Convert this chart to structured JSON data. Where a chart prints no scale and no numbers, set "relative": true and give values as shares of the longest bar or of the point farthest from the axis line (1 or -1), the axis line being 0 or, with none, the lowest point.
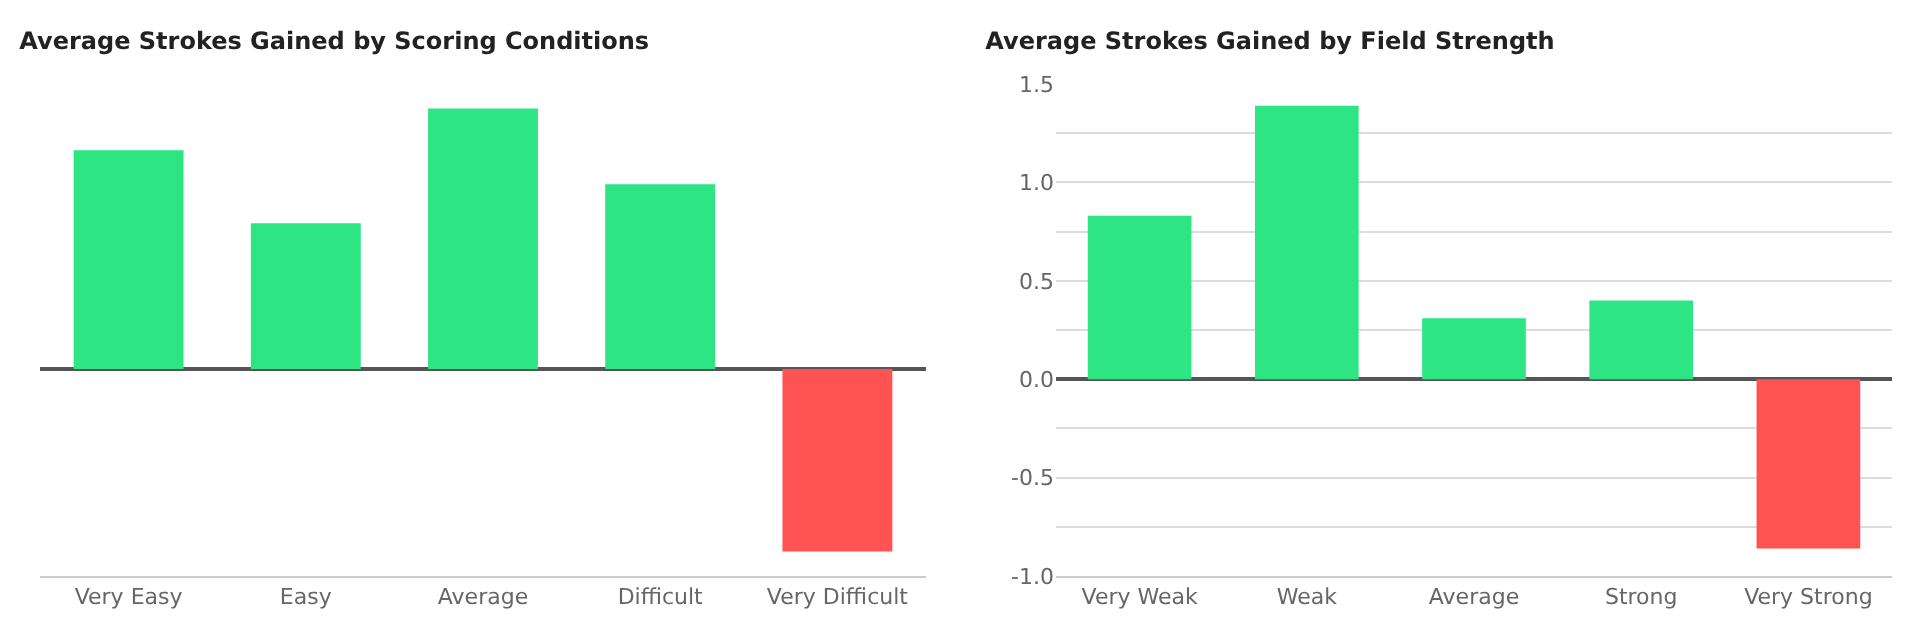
{
  "chart_data": [
    {
      "type": "bar",
      "title": "Average Strokes Gained by Scoring Conditions",
      "categories": [
        "Very Easy",
        "Easy",
        "Average",
        "Difficult",
        "Very Difficult"
      ],
      "values": [
        0.84,
        0.56,
        1,
        0.71,
        -0.7
      ],
      "colors": [
        "#2ee584",
        "#2ee584",
        "#2ee584",
        "#2ee584",
        "#ff5252"
      ],
      "relative": true
    },
    {
      "type": "bar",
      "title": "Average Strokes Gained by Field Strength",
      "categories": [
        "Very Weak",
        "Weak",
        "Average",
        "Strong",
        "Very Strong"
      ],
      "values": [
        0.83,
        1.39,
        0.31,
        0.4,
        -0.86
      ],
      "colors": [
        "#2ee584",
        "#2ee584",
        "#2ee584",
        "#2ee584",
        "#ff5252"
      ],
      "ylim": [
        -1,
        1.5
      ],
      "yticks": [
        {
          "value": -1,
          "label": "-1.0"
        },
        {
          "value": -0.75,
          "label": null
        },
        {
          "value": -0.5,
          "label": "-0.5"
        },
        {
          "value": -0.25,
          "label": null
        },
        {
          "value": 0,
          "label": "0.0"
        },
        {
          "value": 0.25,
          "label": null
        },
        {
          "value": 0.5,
          "label": "0.5"
        },
        {
          "value": 0.75,
          "label": null
        },
        {
          "value": 1,
          "label": "1.0"
        },
        {
          "value": 1.25,
          "label": null
        },
        {
          "value": 1.5,
          "label": "1.5"
        }
      ],
      "grid": "y"
    }
  ]
}
